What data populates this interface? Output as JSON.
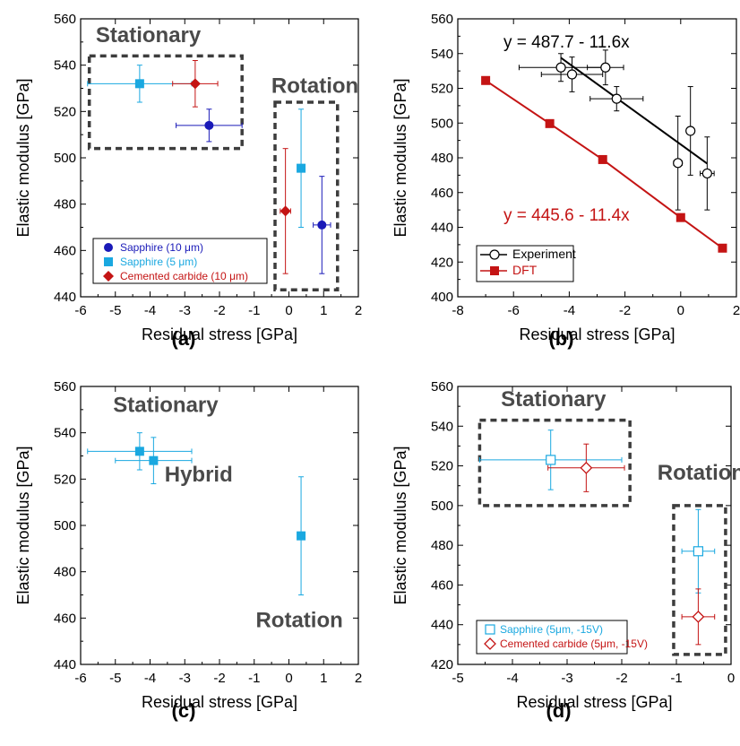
{
  "chart_data": [
    {
      "panel": "(a)",
      "type": "scatter",
      "xlabel": "Residual stress [GPa]",
      "ylabel": "Elastic modulus [GPa]",
      "xlim": [
        -6,
        2
      ],
      "ylim": [
        440,
        560
      ],
      "xticks": [
        -6,
        -5,
        -4,
        -3,
        -2,
        -1,
        0,
        1,
        2
      ],
      "yticks": [
        440,
        460,
        480,
        500,
        520,
        540,
        560
      ],
      "legend_position": "bottom-left",
      "series": [
        {
          "name": "Sapphire (10 μm)",
          "color": "#1a1ab8",
          "marker": "circle",
          "points": [
            {
              "x": -2.3,
              "y": 514,
              "xerr": 0.95,
              "yerr": 7
            },
            {
              "x": 0.95,
              "y": 471,
              "xerr": 0.25,
              "yerr": 21
            }
          ]
        },
        {
          "name": "Sapphire (5 μm)",
          "color": "#1aa8e0",
          "marker": "square",
          "points": [
            {
              "x": -4.3,
              "y": 532,
              "xerr": 1.5,
              "yerr": 8
            },
            {
              "x": 0.35,
              "y": 495.5,
              "xerr": 0,
              "yerr": 25.5
            }
          ]
        },
        {
          "name": "Cemented carbide (10 μm)",
          "color": "#c41414",
          "marker": "diamond",
          "points": [
            {
              "x": -2.7,
              "y": 532,
              "xerr": 0.65,
              "yerr": 10
            },
            {
              "x": -0.1,
              "y": 477,
              "xerr": 0.15,
              "yerr": 27
            }
          ]
        }
      ],
      "annotations": [
        {
          "text": "Stationary",
          "x": -4.05,
          "y": 550
        },
        {
          "text": "Rotation",
          "x": 0.75,
          "y": 528
        }
      ],
      "boxes": [
        {
          "x0": -5.75,
          "x1": -1.35,
          "y0": 504,
          "y1": 544
        },
        {
          "x0": -0.4,
          "x1": 1.4,
          "y0": 443,
          "y1": 524
        }
      ]
    },
    {
      "panel": "(b)",
      "type": "scatter",
      "xlabel": "Residual stress [GPa]",
      "ylabel": "Elastic modulus [GPa]",
      "xlim": [
        -8,
        2
      ],
      "ylim": [
        400,
        560
      ],
      "xticks": [
        -8,
        -6,
        -4,
        -2,
        0,
        2
      ],
      "yticks": [
        400,
        420,
        440,
        460,
        480,
        500,
        520,
        540,
        560
      ],
      "legend_position": "bottom-left",
      "series": [
        {
          "name": "Experiment",
          "color": "#000000",
          "marker": "circle-open",
          "points": [
            {
              "x": -4.3,
              "y": 532,
              "xerr": 1.5,
              "yerr": 8
            },
            {
              "x": -3.9,
              "y": 528,
              "xerr": 1.1,
              "yerr": 10
            },
            {
              "x": -2.7,
              "y": 532,
              "xerr": 0.65,
              "yerr": 10
            },
            {
              "x": -2.3,
              "y": 514,
              "xerr": 0.95,
              "yerr": 7
            },
            {
              "x": -0.1,
              "y": 477,
              "xerr": 0.15,
              "yerr": 27
            },
            {
              "x": 0.35,
              "y": 495.5,
              "xerr": 0,
              "yerr": 25.5
            },
            {
              "x": 0.95,
              "y": 471,
              "xerr": 0.25,
              "yerr": 21
            }
          ],
          "fit": {
            "x": [
              -4.3,
              0.95
            ],
            "equation": "y = 487.7 - 11.6x"
          }
        },
        {
          "name": "DFT",
          "color": "#c41414",
          "marker": "square",
          "line": true,
          "points": [
            {
              "x": -7.0,
              "y": 524.5
            },
            {
              "x": -4.7,
              "y": 499.7
            },
            {
              "x": -2.8,
              "y": 479
            },
            {
              "x": 0.0,
              "y": 445.6
            },
            {
              "x": 1.5,
              "y": 428
            }
          ],
          "equation": "y = 445.6 - 11.4x"
        }
      ]
    },
    {
      "panel": "(c)",
      "type": "scatter",
      "xlabel": "Residual stress [GPa]",
      "ylabel": "Elastic modulus [GPa]",
      "xlim": [
        -6,
        2
      ],
      "ylim": [
        440,
        560
      ],
      "xticks": [
        -6,
        -5,
        -4,
        -3,
        -2,
        -1,
        0,
        1,
        2
      ],
      "yticks": [
        440,
        460,
        480,
        500,
        520,
        540,
        560
      ],
      "series": [
        {
          "color": "#1aa8e0",
          "marker": "square",
          "points": [
            {
              "x": -4.3,
              "y": 532,
              "xerr": 1.5,
              "yerr": 8
            },
            {
              "x": -3.9,
              "y": 528,
              "xerr": 1.1,
              "yerr": 10
            },
            {
              "x": 0.35,
              "y": 495.5,
              "xerr": 0,
              "yerr": 25.5
            }
          ]
        }
      ],
      "annotations": [
        {
          "text": "Stationary",
          "x": -3.55,
          "y": 549
        },
        {
          "text": "Hybrid",
          "x": -2.6,
          "y": 519
        },
        {
          "text": "Rotation",
          "x": 0.3,
          "y": 456
        }
      ]
    },
    {
      "panel": "(d)",
      "type": "scatter",
      "xlabel": "Residual stress [GPa]",
      "ylabel": "Elastic modulus [GPa]",
      "xlim": [
        -5,
        0
      ],
      "ylim": [
        420,
        560
      ],
      "xticks": [
        -5,
        -4,
        -3,
        -2,
        -1,
        0
      ],
      "yticks": [
        420,
        440,
        460,
        480,
        500,
        520,
        540,
        560
      ],
      "legend_position": "bottom-left",
      "series": [
        {
          "name": "Sapphire (5μm, -15V)",
          "color": "#1aa8e0",
          "marker": "square-open",
          "points": [
            {
              "x": -3.3,
              "y": 523,
              "xerr": 1.3,
              "yerr": 15
            },
            {
              "x": -0.6,
              "y": 477,
              "xerr": 0.3,
              "yerr": 21
            }
          ]
        },
        {
          "name": "Cemented carbide (5μm, -15V)",
          "color": "#c41414",
          "marker": "diamond-open",
          "points": [
            {
              "x": -2.65,
              "y": 519,
              "xerr": 0.7,
              "yerr": 12
            },
            {
              "x": -0.6,
              "y": 444,
              "xerr": 0.3,
              "yerr": 14
            }
          ]
        }
      ],
      "annotations": [
        {
          "text": "Stationary",
          "x": -3.25,
          "y": 550
        },
        {
          "text": "Rotation",
          "x": -0.55,
          "y": 513
        }
      ],
      "boxes": [
        {
          "x0": -4.6,
          "x1": -1.85,
          "y0": 500,
          "y1": 543
        },
        {
          "x0": -1.05,
          "x1": -0.1,
          "y0": 425,
          "y1": 500
        }
      ]
    }
  ]
}
